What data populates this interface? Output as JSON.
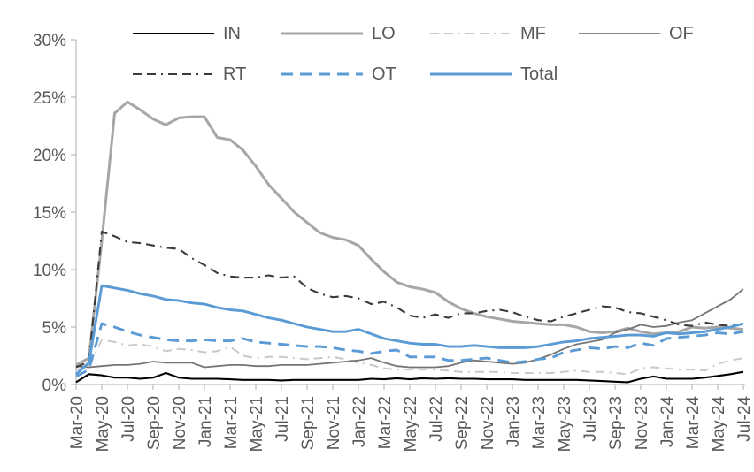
{
  "chart_data": {
    "type": "line",
    "title": "",
    "grid": "off",
    "legend_position": "top",
    "legend_rows": [
      [
        "IN",
        "LO",
        "MF",
        "OF"
      ],
      [
        "RT",
        "OT",
        "Total"
      ]
    ],
    "axis_color": "#BFBFBF",
    "label_color": "#595959",
    "y_axis": {
      "min": 0,
      "max": 30,
      "unit": "%",
      "tick_labels": [
        "0%",
        "5%",
        "10%",
        "15%",
        "20%",
        "25%",
        "30%"
      ]
    },
    "x_axis": {
      "tick_labels": [
        "Mar-20",
        "May-20",
        "Jul-20",
        "Sep-20",
        "Nov-20",
        "Jan-21",
        "Mar-21",
        "May-21",
        "Jul-21",
        "Sep-21",
        "Nov-21",
        "Jan-22",
        "Mar-22",
        "May-22",
        "Jul-22",
        "Sep-22",
        "Nov-22",
        "Jan-23",
        "Mar-23",
        "May-23",
        "Jul-23",
        "Sep-23",
        "Nov-23",
        "Jan-24",
        "Mar-24",
        "May-24",
        "Jul-24"
      ],
      "all_categories": [
        "Mar-20",
        "Apr-20",
        "May-20",
        "Jun-20",
        "Jul-20",
        "Aug-20",
        "Sep-20",
        "Oct-20",
        "Nov-20",
        "Dec-20",
        "Jan-21",
        "Feb-21",
        "Mar-21",
        "Apr-21",
        "May-21",
        "Jun-21",
        "Jul-21",
        "Aug-21",
        "Sep-21",
        "Oct-21",
        "Nov-21",
        "Dec-21",
        "Jan-22",
        "Feb-22",
        "Mar-22",
        "Apr-22",
        "May-22",
        "Jun-22",
        "Jul-22",
        "Aug-22",
        "Sep-22",
        "Oct-22",
        "Nov-22",
        "Dec-22",
        "Jan-23",
        "Feb-23",
        "Mar-23",
        "Apr-23",
        "May-23",
        "Jun-23",
        "Jul-23",
        "Aug-23",
        "Sep-23",
        "Oct-23",
        "Nov-23",
        "Dec-23",
        "Jan-24",
        "Feb-24",
        "Mar-24",
        "Apr-24",
        "May-24",
        "Jun-24",
        "Jul-24"
      ]
    },
    "series": [
      {
        "name": "IN",
        "color": "#000000",
        "line_style": "solid",
        "width": 2.1,
        "values": [
          0.2,
          0.9,
          0.8,
          0.6,
          0.6,
          0.5,
          0.6,
          1.0,
          0.6,
          0.5,
          0.5,
          0.5,
          0.45,
          0.4,
          0.4,
          0.4,
          0.35,
          0.4,
          0.4,
          0.4,
          0.4,
          0.4,
          0.4,
          0.5,
          0.45,
          0.55,
          0.45,
          0.55,
          0.5,
          0.55,
          0.5,
          0.5,
          0.45,
          0.45,
          0.45,
          0.4,
          0.4,
          0.4,
          0.4,
          0.4,
          0.35,
          0.3,
          0.25,
          0.2,
          0.5,
          0.7,
          0.5,
          0.5,
          0.5,
          0.6,
          0.75,
          0.9,
          1.1
        ]
      },
      {
        "name": "LO",
        "color": "#A6A6A6",
        "line_style": "solid",
        "width": 3,
        "values": [
          1.7,
          2.3,
          12.5,
          23.6,
          24.6,
          23.9,
          23.1,
          22.6,
          23.2,
          23.3,
          23.3,
          21.5,
          21.3,
          20.4,
          19.0,
          17.4,
          16.2,
          15.0,
          14.1,
          13.2,
          12.8,
          12.6,
          12.1,
          10.9,
          9.8,
          8.9,
          8.5,
          8.3,
          8.0,
          7.2,
          6.6,
          6.2,
          5.9,
          5.7,
          5.5,
          5.4,
          5.3,
          5.2,
          5.2,
          5.0,
          4.6,
          4.5,
          4.6,
          4.9,
          4.6,
          4.4,
          4.5,
          4.6,
          5.0,
          4.9,
          5.0,
          4.9,
          4.8
        ]
      },
      {
        "name": "MF",
        "color": "#C9C9C9",
        "line_style": "dashed",
        "width": 2,
        "values": [
          1.3,
          1.5,
          3.9,
          3.7,
          3.4,
          3.5,
          3.3,
          2.9,
          3.1,
          3.0,
          2.8,
          2.9,
          3.3,
          2.5,
          2.3,
          2.4,
          2.4,
          2.3,
          2.2,
          2.3,
          2.4,
          2.2,
          1.9,
          1.7,
          1.4,
          1.3,
          1.3,
          1.3,
          1.3,
          1.2,
          1.1,
          1.1,
          1.1,
          1.1,
          1.0,
          1.0,
          1.0,
          1.0,
          1.1,
          1.2,
          1.1,
          1.1,
          1.0,
          0.9,
          1.4,
          1.5,
          1.4,
          1.3,
          1.3,
          1.2,
          1.8,
          2.1,
          2.3
        ]
      },
      {
        "name": "OF",
        "color": "#757575",
        "line_style": "solid",
        "width": 1.8,
        "values": [
          1.6,
          1.5,
          1.6,
          1.7,
          1.7,
          1.8,
          2.0,
          1.9,
          1.9,
          1.9,
          1.5,
          1.6,
          1.7,
          1.7,
          1.6,
          1.6,
          1.7,
          1.7,
          1.7,
          1.8,
          1.9,
          2.0,
          2.1,
          2.3,
          1.9,
          1.6,
          1.5,
          1.5,
          1.5,
          1.6,
          1.9,
          2.1,
          2.0,
          1.9,
          1.8,
          1.9,
          2.2,
          2.6,
          3.1,
          3.5,
          3.7,
          3.9,
          4.5,
          4.8,
          5.2,
          5.0,
          5.1,
          5.4,
          5.6,
          6.2,
          6.8,
          7.4,
          8.3
        ]
      },
      {
        "name": "RT",
        "color": "#3B3B3B",
        "line_style": "dashed",
        "width": 2.1,
        "values": [
          1.5,
          2.0,
          13.3,
          12.9,
          12.4,
          12.3,
          12.1,
          11.9,
          11.8,
          11.0,
          10.4,
          9.7,
          9.4,
          9.3,
          9.3,
          9.5,
          9.3,
          9.4,
          8.4,
          7.9,
          7.6,
          7.7,
          7.5,
          7.0,
          7.2,
          6.7,
          6.0,
          5.8,
          6.1,
          5.8,
          6.2,
          6.2,
          6.4,
          6.5,
          6.3,
          5.9,
          5.6,
          5.5,
          5.9,
          6.2,
          6.5,
          6.8,
          6.7,
          6.3,
          6.2,
          5.9,
          5.6,
          5.2,
          5.1,
          5.4,
          5.2,
          5.1,
          5.3
        ]
      },
      {
        "name": "OT",
        "color": "#5B9BD5",
        "line_style": "dashed",
        "width": 2.9,
        "values": [
          0.7,
          1.3,
          5.3,
          5.0,
          4.6,
          4.3,
          4.1,
          3.9,
          3.8,
          3.8,
          3.9,
          3.8,
          3.8,
          4.0,
          3.7,
          3.6,
          3.5,
          3.4,
          3.3,
          3.3,
          3.2,
          3.0,
          2.9,
          2.7,
          2.9,
          3.0,
          2.4,
          2.4,
          2.4,
          2.1,
          2.1,
          2.2,
          2.3,
          2.1,
          1.9,
          2.0,
          2.2,
          2.3,
          2.8,
          3.0,
          3.2,
          3.1,
          3.3,
          3.2,
          3.6,
          3.4,
          4.0,
          4.1,
          4.2,
          4.3,
          4.5,
          4.4,
          4.6
        ]
      },
      {
        "name": "Total",
        "color": "#5B9BD5",
        "line_style": "solid",
        "width": 2.9,
        "values": [
          0.9,
          1.9,
          8.6,
          8.4,
          8.2,
          7.9,
          7.7,
          7.4,
          7.3,
          7.1,
          7.0,
          6.7,
          6.5,
          6.4,
          6.1,
          5.8,
          5.6,
          5.3,
          5.0,
          4.8,
          4.6,
          4.6,
          4.8,
          4.4,
          4.0,
          3.8,
          3.6,
          3.5,
          3.5,
          3.3,
          3.3,
          3.4,
          3.3,
          3.2,
          3.2,
          3.2,
          3.3,
          3.5,
          3.7,
          3.8,
          4.0,
          4.1,
          4.2,
          4.3,
          4.3,
          4.2,
          4.5,
          4.4,
          4.5,
          4.6,
          4.8,
          5.0,
          5.3
        ]
      }
    ]
  }
}
